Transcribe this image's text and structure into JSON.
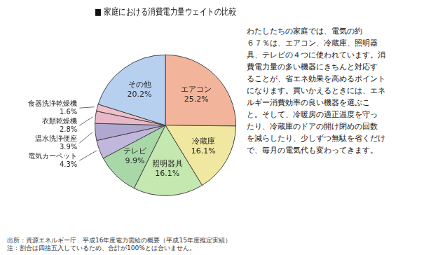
{
  "chart_data": {
    "type": "pie",
    "title": "■ 家庭における消費電力量ウェイトの比較",
    "categories": [
      "エアコン",
      "冷蔵庫",
      "照明器具",
      "テレビ",
      "電気カーペット",
      "温水洗浄便座",
      "衣類乾燥機",
      "食器洗浄乾燥機",
      "その他"
    ],
    "values": [
      25.2,
      16.1,
      16.1,
      9.9,
      4.3,
      3.9,
      2.8,
      1.6,
      20.2
    ],
    "value_labels": [
      "25.2%",
      "16.1%",
      "16.1%",
      "9.9%",
      "4.3%",
      "3.9%",
      "2.8%",
      "1.6%",
      "20.2%"
    ],
    "colors": [
      "#F2B49A",
      "#F0E8A0",
      "#C4E8B0",
      "#A8D8A8",
      "#C0B8DC",
      "#B0A8D0",
      "#E8B8C8",
      "#F0C0C8",
      "#B8D0F0"
    ],
    "data_labels": true,
    "annotations": [
      "わたしたちの家庭では、電気の約\n６７％は、エアコン、冷蔵庫、照明器\n具、テレビの４つに使われています。消\n費電力量の多い機器にきちんと対応す\nることが、省エネ効果を高めるポイント\nになります。買いかえるときには、エネ\nルギー消費効率の良い機器を選ぶこ\nと。そして、冷暖房の適正温度を守っ\nたり、冷蔵庫のドアの開け閉めの回数\nを減らしたり、少しずつ無駄を省くだけ\nで、毎月の電気代も変わってきます。",
      "出所：資源エネルギー庁　平成16年度電力需給の概要（平成15年度推定実績）\n注：割合は四捨五入しているため、合計が100%とは合いません。"
    ]
  }
}
